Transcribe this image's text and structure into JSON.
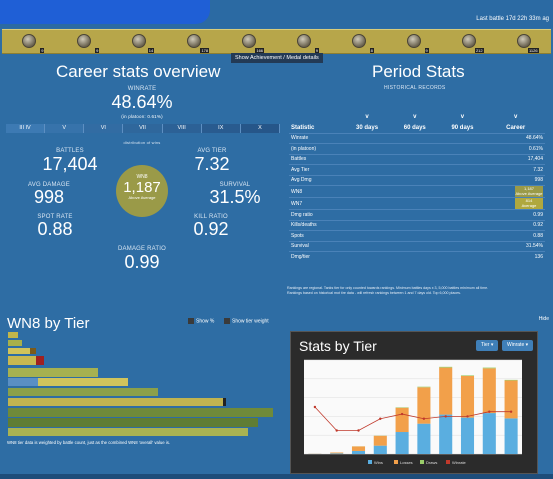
{
  "header": {
    "last_battle": "Last battle 17d 22h 33m ag"
  },
  "medals": [
    {
      "name": "medal-1-icon",
      "count": "9"
    },
    {
      "name": "medal-2-icon",
      "count": "9"
    },
    {
      "name": "medal-3-icon",
      "count": "14"
    },
    {
      "name": "medal-4-icon",
      "count": "178"
    },
    {
      "name": "medal-5-icon",
      "count": "166"
    },
    {
      "name": "medal-6-icon",
      "count": "9"
    },
    {
      "name": "medal-7-icon",
      "count": "8"
    },
    {
      "name": "medal-8-icon",
      "count": "9"
    },
    {
      "name": "medal-9-icon",
      "count": "212"
    },
    {
      "name": "medal-10-icon",
      "count": "1126"
    }
  ],
  "medal_tooltip": "Show Achievement / Medal details",
  "career": {
    "title": "Career stats overview",
    "winrate_label": "WINRATE",
    "winrate": "48.64%",
    "winrate_platoon": "(in platoon: 0.61%)",
    "tiers": [
      "III IV",
      "V",
      "VI",
      "VII",
      "VIII",
      "IX",
      "X"
    ],
    "distribution_label": "distribution of wins",
    "battles_label": "BATTLES",
    "battles": "17,404",
    "avg_tier_label": "AVG TIER",
    "avg_tier": "7.32",
    "avg_damage_label": "AVG DAMAGE",
    "avg_damage": "998",
    "survival_label": "SURVIVAL",
    "survival": "31.5%",
    "spot_rate_label": "SPOT RATE",
    "spot_rate": "0.88",
    "kill_ratio_label": "KILL RATIO",
    "kill_ratio": "0.92",
    "damage_ratio_label": "DAMAGE RATIO",
    "damage_ratio": "0.99",
    "wn8_label": "WN8",
    "wn8": "1,187",
    "wn8_rating": "Above Average"
  },
  "period": {
    "title": "Period Stats",
    "subtitle": "HISTORICAL RECORDS",
    "columns": [
      "Statistic",
      "30 days",
      "60 days",
      "90 days",
      "Career"
    ],
    "toggle": "v",
    "rows": [
      {
        "stat": "Winrate",
        "career": "48.64%"
      },
      {
        "stat": "(in platoon)",
        "career": "0.61%"
      },
      {
        "stat": "Battles",
        "career": "17,404"
      },
      {
        "stat": "Avg Tier",
        "career": "7.32"
      },
      {
        "stat": "Avg Dmg",
        "career": "998"
      },
      {
        "stat": "WN8",
        "career": "1,187",
        "badge": "Above Average",
        "color": "#9a9a48"
      },
      {
        "stat": "WN7",
        "career": "814",
        "badge": "Average",
        "color": "#b0a83e"
      },
      {
        "stat": "Dmg ratio",
        "career": "0.99"
      },
      {
        "stat": "Kills/deaths",
        "career": "0.92"
      },
      {
        "stat": "Spots",
        "career": "0.88"
      },
      {
        "stat": "Survival",
        "career": "31.54%"
      },
      {
        "stat": "Dmg/tier",
        "career": "136"
      }
    ],
    "note1": "Rankings are regional. Tanks tier for only counted towards rankings. Minimum battles days x 3, 5,000 battles minimum all time.",
    "note2": "Rankings based on historical mot tire data - will refresh rankings between 1 and 7 days old. Top 6,000 places."
  },
  "hide_label": "Hide",
  "wn8_by_tier": {
    "title": "WN8 by Tier",
    "show_pct": "Show %",
    "show_tier_weight": "Show tier weight",
    "caption": "WN8 tier data is weighted by battle count, just as the combined WN8 'overall' value is."
  },
  "stats_by_tier": {
    "title": "Stats by Tier",
    "tier_dropdown": "Tier",
    "winrate_dropdown": "Winrate",
    "legend": [
      "Wins",
      "Losses",
      "Draws",
      "Winrate"
    ]
  },
  "chart_data": {
    "type": "bar",
    "title": "Stats by Tier",
    "categories": [
      "I",
      "II",
      "III",
      "IV",
      "V",
      "VI",
      "VII",
      "VIII",
      "IX",
      "X"
    ],
    "series": [
      {
        "name": "Wins",
        "values": [
          10,
          40,
          200,
          550,
          1450,
          2000,
          2600,
          2400,
          2700,
          2350
        ]
      },
      {
        "name": "Losses",
        "values": [
          10,
          60,
          300,
          650,
          1600,
          2400,
          3100,
          2750,
          2950,
          2500
        ]
      },
      {
        "name": "Draws",
        "values": [
          0,
          0,
          5,
          10,
          30,
          40,
          50,
          40,
          50,
          40
        ]
      },
      {
        "name": "Winrate",
        "values": [
          50,
          40,
          40,
          45,
          47,
          45,
          46,
          46,
          48,
          48
        ]
      }
    ],
    "ylim": [
      0,
      6200
    ]
  },
  "colors": {
    "wins": "#5aaee0",
    "losses": "#f2a04a",
    "draws": "#9acd6a",
    "winrate": "#c0392b"
  }
}
